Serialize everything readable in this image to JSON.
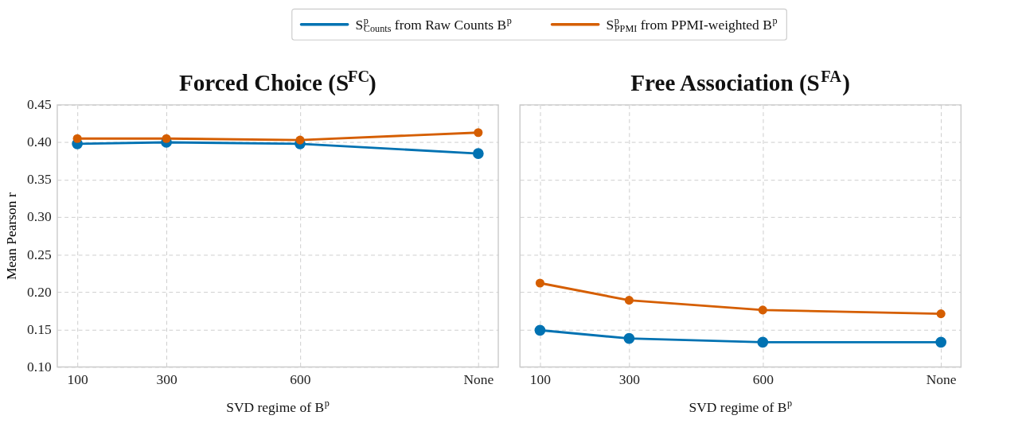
{
  "chart_data": [
    {
      "type": "line",
      "title": "Forced Choice (S$^{FC}$)",
      "xlabel": "SVD regime of B$^{p}$",
      "ylabel": "Mean Pearson r",
      "x": [
        100,
        300,
        600,
        1000
      ],
      "series": [
        {
          "name": "S$^{p}$$_{Counts}$ from Raw Counts B$^{p}$",
          "color": "#0072b2",
          "values": [
            0.398,
            0.4,
            0.398,
            0.385
          ]
        },
        {
          "name": "S$^{p}$$_{PPMI}$ from PPMI-weighted B$^{p}$",
          "color": "#d55e00",
          "values": [
            0.405,
            0.405,
            0.403,
            0.413
          ]
        }
      ],
      "xlim": [
        55,
        1045
      ],
      "xticks": [
        100,
        300,
        600,
        {
          "value": 1000,
          "label": "None"
        }
      ],
      "ylim": [
        0.1,
        0.45
      ],
      "yticks": [
        {
          "value": 0.1,
          "label": "0.10"
        },
        0.15,
        {
          "value": 0.2,
          "label": "0.20"
        },
        0.25,
        {
          "value": 0.3,
          "label": "0.30"
        },
        0.35,
        {
          "value": 0.4,
          "label": "0.40"
        },
        0.45
      ],
      "grid": true,
      "legend": "top",
      "marker": "circle",
      "line_style": "solid"
    },
    {
      "type": "line",
      "title": "Free Association (S$^{FA}$)",
      "xlabel": "SVD regime of B$^{p}$",
      "x": [
        100,
        300,
        600,
        1000
      ],
      "series": [
        {
          "color": "#0072b2",
          "values": [
            0.149,
            0.138,
            0.133,
            0.133
          ]
        },
        {
          "color": "#d55e00",
          "values": [
            0.212,
            0.189,
            0.176,
            0.171
          ]
        }
      ],
      "xlim": [
        55,
        1045
      ],
      "xticks": [
        100,
        300,
        600,
        {
          "value": 1000,
          "label": "None"
        }
      ],
      "ylim": [
        0.1,
        0.45
      ],
      "yticks": [
        0.1,
        0.15,
        0.2,
        0.25,
        0.3,
        0.35,
        0.4,
        0.45
      ],
      "tick_labels": "x",
      "grid": true,
      "marker": "circle",
      "line_style": "solid"
    }
  ]
}
